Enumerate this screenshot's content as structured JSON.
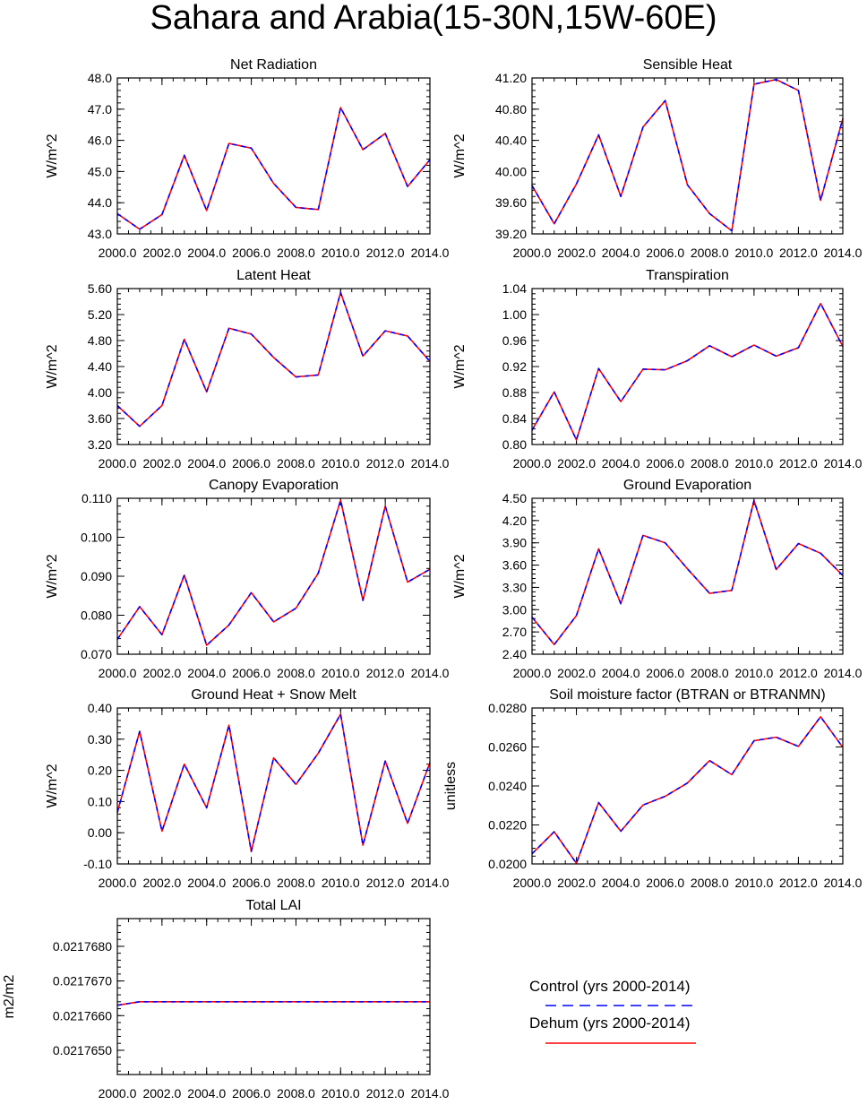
{
  "figure_title": "Sahara and Arabia(15-30N,15W-60E)",
  "legend": [
    {
      "label": "Control (yrs 2000-2014)",
      "color": "#0000ff",
      "style": "dashed"
    },
    {
      "label": "Dehum (yrs 2000-2014)",
      "color": "#ff0000",
      "style": "solid"
    }
  ],
  "chart_data": [
    {
      "type": "line",
      "title": "Net Radiation",
      "ylabel": "W/m^2",
      "xlabel": "",
      "x": [
        2000,
        2001,
        2002,
        2003,
        2004,
        2005,
        2006,
        2007,
        2008,
        2009,
        2010,
        2011,
        2012,
        2013,
        2014
      ],
      "xlim": [
        2000,
        2014
      ],
      "ylim": [
        43.0,
        48.0
      ],
      "xticks": [
        2000,
        2002,
        2004,
        2006,
        2008,
        2010,
        2012,
        2014
      ],
      "xtick_labels": [
        "2000.0",
        "2002.0",
        "2004.0",
        "2006.0",
        "2008.0",
        "2010.0",
        "2012.0",
        "2014.0"
      ],
      "yticks": [
        43.0,
        44.0,
        45.0,
        46.0,
        47.0,
        48.0
      ],
      "ytick_labels": [
        "43.0",
        "44.0",
        "45.0",
        "46.0",
        "47.0",
        "48.0"
      ],
      "series": [
        {
          "name": "Control (yrs 2000-2014)",
          "values": [
            43.65,
            43.15,
            43.62,
            45.52,
            43.75,
            45.9,
            45.75,
            44.62,
            43.85,
            43.78,
            47.05,
            45.7,
            46.22,
            44.52,
            45.38
          ]
        },
        {
          "name": "Dehum (yrs 2000-2014)",
          "values": [
            43.65,
            43.15,
            43.62,
            45.52,
            43.75,
            45.9,
            45.75,
            44.62,
            43.85,
            43.78,
            47.05,
            45.7,
            46.22,
            44.52,
            45.38
          ]
        }
      ]
    },
    {
      "type": "line",
      "title": "Sensible Heat",
      "ylabel": "W/m^2",
      "xlabel": "",
      "x": [
        2000,
        2001,
        2002,
        2003,
        2004,
        2005,
        2006,
        2007,
        2008,
        2009,
        2010,
        2011,
        2012,
        2013,
        2014
      ],
      "xlim": [
        2000,
        2014
      ],
      "ylim": [
        39.2,
        41.2
      ],
      "xticks": [
        2000,
        2002,
        2004,
        2006,
        2008,
        2010,
        2012,
        2014
      ],
      "xtick_labels": [
        "2000.0",
        "2002.0",
        "2004.0",
        "2006.0",
        "2008.0",
        "2010.0",
        "2012.0",
        "2014.0"
      ],
      "yticks": [
        39.2,
        39.6,
        40.0,
        40.4,
        40.8,
        41.2
      ],
      "ytick_labels": [
        "39.20",
        "39.60",
        "40.00",
        "40.40",
        "40.80",
        "41.20"
      ],
      "series": [
        {
          "name": "Control (yrs 2000-2014)",
          "values": [
            39.82,
            39.33,
            39.84,
            40.47,
            39.68,
            40.57,
            40.91,
            39.83,
            39.46,
            39.24,
            41.12,
            41.18,
            41.04,
            39.63,
            40.68
          ]
        },
        {
          "name": "Dehum (yrs 2000-2014)",
          "values": [
            39.82,
            39.33,
            39.84,
            40.47,
            39.68,
            40.57,
            40.91,
            39.83,
            39.46,
            39.24,
            41.12,
            41.18,
            41.04,
            39.63,
            40.68
          ]
        }
      ]
    },
    {
      "type": "line",
      "title": "Latent Heat",
      "ylabel": "W/m^2",
      "xlabel": "",
      "x": [
        2000,
        2001,
        2002,
        2003,
        2004,
        2005,
        2006,
        2007,
        2008,
        2009,
        2010,
        2011,
        2012,
        2013,
        2014
      ],
      "xlim": [
        2000,
        2014
      ],
      "ylim": [
        3.2,
        5.6
      ],
      "xticks": [
        2000,
        2002,
        2004,
        2006,
        2008,
        2010,
        2012,
        2014
      ],
      "xtick_labels": [
        "2000.0",
        "2002.0",
        "2004.0",
        "2006.0",
        "2008.0",
        "2010.0",
        "2012.0",
        "2014.0"
      ],
      "yticks": [
        3.2,
        3.6,
        4.0,
        4.4,
        4.8,
        5.2,
        5.6
      ],
      "ytick_labels": [
        "3.20",
        "3.60",
        "4.00",
        "4.40",
        "4.80",
        "5.20",
        "5.60"
      ],
      "series": [
        {
          "name": "Control (yrs 2000-2014)",
          "values": [
            3.8,
            3.48,
            3.8,
            4.82,
            4.01,
            4.99,
            4.9,
            4.54,
            4.24,
            4.27,
            5.54,
            4.56,
            4.95,
            4.87,
            4.48
          ]
        },
        {
          "name": "Dehum (yrs 2000-2014)",
          "values": [
            3.8,
            3.48,
            3.8,
            4.82,
            4.01,
            4.99,
            4.9,
            4.54,
            4.24,
            4.27,
            5.54,
            4.56,
            4.95,
            4.87,
            4.48
          ]
        }
      ]
    },
    {
      "type": "line",
      "title": "Transpiration",
      "ylabel": "W/m^2",
      "xlabel": "",
      "x": [
        2000,
        2001,
        2002,
        2003,
        2004,
        2005,
        2006,
        2007,
        2008,
        2009,
        2010,
        2011,
        2012,
        2013,
        2014
      ],
      "xlim": [
        2000,
        2014
      ],
      "ylim": [
        0.8,
        1.04
      ],
      "xticks": [
        2000,
        2002,
        2004,
        2006,
        2008,
        2010,
        2012,
        2014
      ],
      "xtick_labels": [
        "2000.0",
        "2002.0",
        "2004.0",
        "2006.0",
        "2008.0",
        "2010.0",
        "2012.0",
        "2014.0"
      ],
      "yticks": [
        0.8,
        0.84,
        0.88,
        0.92,
        0.96,
        1.0,
        1.04
      ],
      "ytick_labels": [
        "0.80",
        "0.84",
        "0.88",
        "0.92",
        "0.96",
        "1.00",
        "1.04"
      ],
      "series": [
        {
          "name": "Control (yrs 2000-2014)",
          "values": [
            0.822,
            0.881,
            0.807,
            0.917,
            0.866,
            0.916,
            0.915,
            0.929,
            0.952,
            0.935,
            0.953,
            0.936,
            0.949,
            1.017,
            0.951
          ]
        },
        {
          "name": "Dehum (yrs 2000-2014)",
          "values": [
            0.822,
            0.881,
            0.807,
            0.917,
            0.866,
            0.916,
            0.915,
            0.929,
            0.952,
            0.935,
            0.953,
            0.936,
            0.949,
            1.017,
            0.951
          ]
        }
      ]
    },
    {
      "type": "line",
      "title": "Canopy Evaporation",
      "ylabel": "W/m^2",
      "xlabel": "",
      "x": [
        2000,
        2001,
        2002,
        2003,
        2004,
        2005,
        2006,
        2007,
        2008,
        2009,
        2010,
        2011,
        2012,
        2013,
        2014
      ],
      "xlim": [
        2000,
        2014
      ],
      "ylim": [
        0.07,
        0.11
      ],
      "xticks": [
        2000,
        2002,
        2004,
        2006,
        2008,
        2010,
        2012,
        2014
      ],
      "xtick_labels": [
        "2000.0",
        "2002.0",
        "2004.0",
        "2006.0",
        "2008.0",
        "2010.0",
        "2012.0",
        "2014.0"
      ],
      "yticks": [
        0.07,
        0.08,
        0.09,
        0.1,
        0.11
      ],
      "ytick_labels": [
        "0.070",
        "0.080",
        "0.090",
        "0.100",
        "0.110"
      ],
      "series": [
        {
          "name": "Control (yrs 2000-2014)",
          "values": [
            0.0738,
            0.0822,
            0.075,
            0.0903,
            0.0723,
            0.0775,
            0.0858,
            0.0783,
            0.0818,
            0.0908,
            0.1095,
            0.0838,
            0.108,
            0.0885,
            0.0918
          ]
        },
        {
          "name": "Dehum (yrs 2000-2014)",
          "values": [
            0.0738,
            0.0822,
            0.075,
            0.0903,
            0.0723,
            0.0775,
            0.0858,
            0.0783,
            0.0818,
            0.0908,
            0.1095,
            0.0838,
            0.108,
            0.0885,
            0.0918
          ]
        }
      ]
    },
    {
      "type": "line",
      "title": "Ground Evaporation",
      "ylabel": "W/m^2",
      "xlabel": "",
      "x": [
        2000,
        2001,
        2002,
        2003,
        2004,
        2005,
        2006,
        2007,
        2008,
        2009,
        2010,
        2011,
        2012,
        2013,
        2014
      ],
      "xlim": [
        2000,
        2014
      ],
      "ylim": [
        2.4,
        4.5
      ],
      "xticks": [
        2000,
        2002,
        2004,
        2006,
        2008,
        2010,
        2012,
        2014
      ],
      "xtick_labels": [
        "2000.0",
        "2002.0",
        "2004.0",
        "2006.0",
        "2008.0",
        "2010.0",
        "2012.0",
        "2014.0"
      ],
      "yticks": [
        2.4,
        2.7,
        3.0,
        3.3,
        3.6,
        3.9,
        4.2,
        4.5
      ],
      "ytick_labels": [
        "2.40",
        "2.70",
        "3.00",
        "3.30",
        "3.60",
        "3.90",
        "4.20",
        "4.50"
      ],
      "series": [
        {
          "name": "Control (yrs 2000-2014)",
          "values": [
            2.9,
            2.53,
            2.92,
            3.82,
            3.08,
            4.0,
            3.9,
            3.55,
            3.22,
            3.26,
            4.47,
            3.54,
            3.89,
            3.76,
            3.46
          ]
        },
        {
          "name": "Dehum (yrs 2000-2014)",
          "values": [
            2.9,
            2.53,
            2.92,
            3.82,
            3.08,
            4.0,
            3.9,
            3.55,
            3.22,
            3.26,
            4.47,
            3.54,
            3.89,
            3.76,
            3.46
          ]
        }
      ]
    },
    {
      "type": "line",
      "title": "Ground Heat + Snow Melt",
      "ylabel": "W/m^2",
      "xlabel": "",
      "x": [
        2000,
        2001,
        2002,
        2003,
        2004,
        2005,
        2006,
        2007,
        2008,
        2009,
        2010,
        2011,
        2012,
        2013,
        2014
      ],
      "xlim": [
        2000,
        2014
      ],
      "ylim": [
        -0.1,
        0.4
      ],
      "xticks": [
        2000,
        2002,
        2004,
        2006,
        2008,
        2010,
        2012,
        2014
      ],
      "xtick_labels": [
        "2000.0",
        "2002.0",
        "2004.0",
        "2006.0",
        "2008.0",
        "2010.0",
        "2012.0",
        "2014.0"
      ],
      "yticks": [
        -0.1,
        0.0,
        0.1,
        0.2,
        0.3,
        0.4
      ],
      "ytick_labels": [
        "-0.10",
        "0.00",
        "0.10",
        "0.20",
        "0.30",
        "0.40"
      ],
      "series": [
        {
          "name": "Control (yrs 2000-2014)",
          "values": [
            0.065,
            0.325,
            0.005,
            0.22,
            0.08,
            0.345,
            -0.06,
            0.24,
            0.155,
            0.255,
            0.38,
            -0.04,
            0.23,
            0.03,
            0.225
          ]
        },
        {
          "name": "Dehum (yrs 2000-2014)",
          "values": [
            0.065,
            0.325,
            0.005,
            0.22,
            0.08,
            0.345,
            -0.06,
            0.24,
            0.155,
            0.255,
            0.38,
            -0.04,
            0.23,
            0.03,
            0.225
          ]
        }
      ]
    },
    {
      "type": "line",
      "title": "Soil moisture factor (BTRAN or BTRANMN)",
      "ylabel": "unitless",
      "xlabel": "",
      "x": [
        2000,
        2001,
        2002,
        2003,
        2004,
        2005,
        2006,
        2007,
        2008,
        2009,
        2010,
        2011,
        2012,
        2013,
        2014
      ],
      "xlim": [
        2000,
        2014
      ],
      "ylim": [
        0.02,
        0.028
      ],
      "xticks": [
        2000,
        2002,
        2004,
        2006,
        2008,
        2010,
        2012,
        2014
      ],
      "xtick_labels": [
        "2000.0",
        "2002.0",
        "2004.0",
        "2006.0",
        "2008.0",
        "2010.0",
        "2012.0",
        "2014.0"
      ],
      "yticks": [
        0.02,
        0.022,
        0.024,
        0.026,
        0.028
      ],
      "ytick_labels": [
        "0.0200",
        "0.0220",
        "0.0240",
        "0.0260",
        "0.0280"
      ],
      "series": [
        {
          "name": "Control (yrs 2000-2014)",
          "values": [
            0.02052,
            0.02165,
            0.02003,
            0.02315,
            0.02168,
            0.02302,
            0.02347,
            0.02415,
            0.0253,
            0.02458,
            0.02632,
            0.0265,
            0.02603,
            0.02755,
            0.02598
          ]
        },
        {
          "name": "Dehum (yrs 2000-2014)",
          "values": [
            0.02052,
            0.02165,
            0.02003,
            0.02315,
            0.02168,
            0.02302,
            0.02347,
            0.02415,
            0.0253,
            0.02458,
            0.02632,
            0.0265,
            0.02603,
            0.02755,
            0.02598
          ]
        }
      ]
    },
    {
      "type": "line",
      "title": "Total LAI",
      "ylabel": "m2/m2",
      "xlabel": "",
      "x": [
        2000,
        2001,
        2002,
        2003,
        2004,
        2005,
        2006,
        2007,
        2008,
        2009,
        2010,
        2011,
        2012,
        2013,
        2014
      ],
      "xlim": [
        2000,
        2014
      ],
      "ylim": [
        0.0217643,
        0.0217688
      ],
      "xticks": [
        2000,
        2002,
        2004,
        2006,
        2008,
        2010,
        2012,
        2014
      ],
      "xtick_labels": [
        "2000.0",
        "2002.0",
        "2004.0",
        "2006.0",
        "2008.0",
        "2010.0",
        "2012.0",
        "2014.0"
      ],
      "yticks": [
        0.021765,
        0.021766,
        0.021767,
        0.021768
      ],
      "ytick_labels": [
        "0.0217650",
        "0.0217660",
        "0.0217670",
        "0.0217680"
      ],
      "series": [
        {
          "name": "Control (yrs 2000-2014)",
          "values": [
            0.0217663,
            0.0217664,
            0.0217664,
            0.0217664,
            0.0217664,
            0.0217664,
            0.0217664,
            0.0217664,
            0.0217664,
            0.0217664,
            0.0217664,
            0.0217664,
            0.0217664,
            0.0217664,
            0.0217664
          ]
        },
        {
          "name": "Dehum (yrs 2000-2014)",
          "values": [
            0.0217663,
            0.0217664,
            0.0217664,
            0.0217664,
            0.0217664,
            0.0217664,
            0.0217664,
            0.0217664,
            0.0217664,
            0.0217664,
            0.0217664,
            0.0217664,
            0.0217664,
            0.0217664,
            0.0217664
          ]
        }
      ]
    }
  ]
}
